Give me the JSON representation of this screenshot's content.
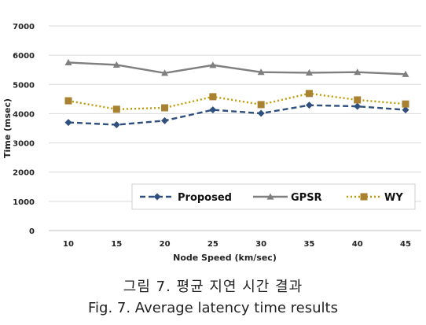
{
  "chart_data": {
    "type": "line",
    "xlabel": "Node Speed (km/sec)",
    "ylabel": "Time (msec)",
    "x": [
      10,
      15,
      20,
      25,
      30,
      35,
      40,
      45
    ],
    "ylim": [
      0,
      7000
    ],
    "yticks": [
      0,
      1000,
      2000,
      3000,
      4000,
      5000,
      6000,
      7000
    ],
    "grid": "horizontal",
    "legend_position": "bottom-right",
    "series": [
      {
        "name": "Proposed",
        "color": "#2f4f7f",
        "line_style": "dashed",
        "marker": "diamond",
        "values": [
          3700,
          3620,
          3760,
          4130,
          4010,
          4290,
          4250,
          4130
        ]
      },
      {
        "name": "GPSR",
        "color": "#7f7f7f",
        "line_style": "solid",
        "marker": "triangle",
        "values": [
          5750,
          5670,
          5390,
          5660,
          5420,
          5400,
          5420,
          5350
        ]
      },
      {
        "name": "WY",
        "color": "#c09a00",
        "line_style": "dotted",
        "marker": "square",
        "marker_color": "#a88230",
        "values": [
          4440,
          4150,
          4200,
          4580,
          4310,
          4690,
          4470,
          4330
        ]
      }
    ]
  },
  "caption": {
    "korean": "그림 7. 평균 지연 시간 결과",
    "english": "Fig. 7. Average latency time results"
  }
}
